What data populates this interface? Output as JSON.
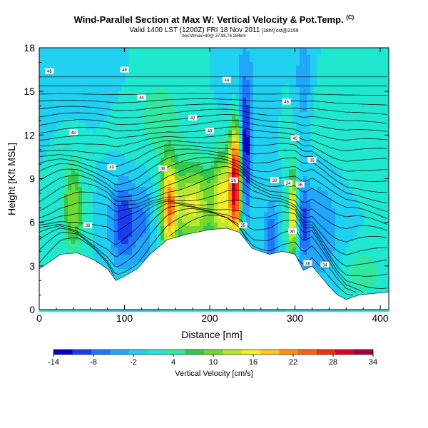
{
  "title": "Wind-Parallel Section at Max W: Vertical Velocity & Pot.Temp.",
  "title_mark": "(C)",
  "subtitle": "Valid 1400 LST (1200Z) FRI 18 Nov 2011",
  "subtitle_extra": "[18hr] cst@2159",
  "subtitle2": "box:Wmax=40@ 37.98,76.284km",
  "chart_data": {
    "type": "heatmap",
    "xlabel": "Distance [nm]",
    "ylabel": "Height [Kft MSL]",
    "xlim": [
      0,
      410
    ],
    "ylim": [
      0,
      18
    ],
    "x_ticks": [
      0,
      100,
      200,
      300,
      400
    ],
    "y_ticks": [
      0,
      3,
      6,
      9,
      12,
      15,
      18
    ],
    "grid": false,
    "colorbar": {
      "label": "Vertical Velocity [cm/s]",
      "tick_labels": [
        "-14",
        "-8",
        "-2",
        "4",
        "10",
        "16",
        "22",
        "28",
        "34"
      ],
      "min": -14,
      "max": 34,
      "step": 3,
      "colors": [
        "#0000c8",
        "#1a3cf0",
        "#1e78ff",
        "#20a8ff",
        "#20d0f0",
        "#20e8d0",
        "#30e8a0",
        "#30c850",
        "#70d830",
        "#b8e830",
        "#f0f028",
        "#ffc820",
        "#ff9010",
        "#ff6010",
        "#f03010",
        "#d80020",
        "#a00040"
      ]
    },
    "terrain_height_kft": [
      {
        "x": 0,
        "h": 2.8
      },
      {
        "x": 10,
        "h": 3.2
      },
      {
        "x": 25,
        "h": 3.8
      },
      {
        "x": 45,
        "h": 3.9
      },
      {
        "x": 65,
        "h": 3.4
      },
      {
        "x": 80,
        "h": 2.8
      },
      {
        "x": 90,
        "h": 2.0
      },
      {
        "x": 100,
        "h": 2.3
      },
      {
        "x": 115,
        "h": 2.8
      },
      {
        "x": 130,
        "h": 3.8
      },
      {
        "x": 150,
        "h": 4.8
      },
      {
        "x": 175,
        "h": 5.2
      },
      {
        "x": 200,
        "h": 5.5
      },
      {
        "x": 220,
        "h": 5.6
      },
      {
        "x": 235,
        "h": 5.3
      },
      {
        "x": 250,
        "h": 4.2
      },
      {
        "x": 270,
        "h": 3.8
      },
      {
        "x": 285,
        "h": 4.0
      },
      {
        "x": 300,
        "h": 3.8
      },
      {
        "x": 310,
        "h": 2.7
      },
      {
        "x": 320,
        "h": 3.0
      },
      {
        "x": 330,
        "h": 2.3
      },
      {
        "x": 340,
        "h": 1.6
      },
      {
        "x": 350,
        "h": 1.0
      },
      {
        "x": 360,
        "h": 0.7
      },
      {
        "x": 375,
        "h": 1.0
      },
      {
        "x": 390,
        "h": 1.1
      },
      {
        "x": 410,
        "h": 1.2
      }
    ],
    "vertical_velocity_features": [
      {
        "x": 40,
        "z": 7.0,
        "sx": 8,
        "sz": 2.2,
        "w": 12
      },
      {
        "x": 100,
        "z": 6.0,
        "sx": 12,
        "sz": 2.0,
        "w": -12
      },
      {
        "x": 125,
        "z": 6.2,
        "sx": 7,
        "sz": 2.5,
        "w": -5
      },
      {
        "x": 152,
        "z": 7.0,
        "sx": 6,
        "sz": 2.2,
        "w": 20
      },
      {
        "x": 180,
        "z": 7.2,
        "sx": 18,
        "sz": 2.0,
        "w": 16
      },
      {
        "x": 215,
        "z": 7.5,
        "sx": 8,
        "sz": 2.5,
        "w": 15
      },
      {
        "x": 230,
        "z": 8.8,
        "sx": 5,
        "sz": 2.8,
        "w": 32
      },
      {
        "x": 242,
        "z": 10.5,
        "sx": 4,
        "sz": 3.0,
        "w": -14
      },
      {
        "x": 272,
        "z": 5.0,
        "sx": 6,
        "sz": 1.8,
        "w": -8
      },
      {
        "x": 297,
        "z": 6.5,
        "sx": 4,
        "sz": 2.2,
        "w": 20
      },
      {
        "x": 310,
        "z": 6.0,
        "sx": 5,
        "sz": 2.0,
        "w": -8
      },
      {
        "x": 330,
        "z": 5.5,
        "sx": 15,
        "sz": 2.5,
        "w": -6
      },
      {
        "x": 240,
        "z": 15.0,
        "sx": 15,
        "sz": 3.0,
        "w": -4
      },
      {
        "x": 310,
        "z": 16.0,
        "sx": 6,
        "sz": 2.5,
        "w": -6
      },
      {
        "x": 50,
        "z": 16.5,
        "sx": 30,
        "sz": 1.5,
        "w": -3
      },
      {
        "x": 360,
        "z": 12.5,
        "sx": 30,
        "sz": 2.0,
        "w": 2
      },
      {
        "x": 380,
        "z": 2.5,
        "sx": 15,
        "sz": 1.0,
        "w": 6
      },
      {
        "x": 140,
        "z": 13.0,
        "sx": 25,
        "sz": 3.0,
        "w": 4
      }
    ],
    "theta_contour_labels": [
      {
        "x": 12,
        "z": 16.4,
        "text": "46"
      },
      {
        "x": 100,
        "z": 16.5,
        "text": "48"
      },
      {
        "x": 120,
        "z": 14.6,
        "text": "44"
      },
      {
        "x": 220,
        "z": 15.8,
        "text": "44"
      },
      {
        "x": 290,
        "z": 14.3,
        "text": "46"
      },
      {
        "x": 40,
        "z": 12.2,
        "text": "48"
      },
      {
        "x": 180,
        "z": 13.2,
        "text": "48"
      },
      {
        "x": 200,
        "z": 12.3,
        "text": "46"
      },
      {
        "x": 300,
        "z": 11.8,
        "text": "40"
      },
      {
        "x": 320,
        "z": 10.3,
        "text": "38"
      },
      {
        "x": 85,
        "z": 9.8,
        "text": "40"
      },
      {
        "x": 145,
        "z": 9.7,
        "text": "38"
      },
      {
        "x": 228,
        "z": 8.9,
        "text": "36"
      },
      {
        "x": 276,
        "z": 8.9,
        "text": "38"
      },
      {
        "x": 292,
        "z": 8.7,
        "text": "34"
      },
      {
        "x": 306,
        "z": 8.6,
        "text": "36"
      },
      {
        "x": 57,
        "z": 5.8,
        "text": "36"
      },
      {
        "x": 239,
        "z": 5.8,
        "text": "35"
      },
      {
        "x": 297,
        "z": 5.4,
        "text": "36"
      },
      {
        "x": 315,
        "z": 3.2,
        "text": "38"
      },
      {
        "x": 335,
        "z": 3.1,
        "text": "34"
      }
    ]
  }
}
